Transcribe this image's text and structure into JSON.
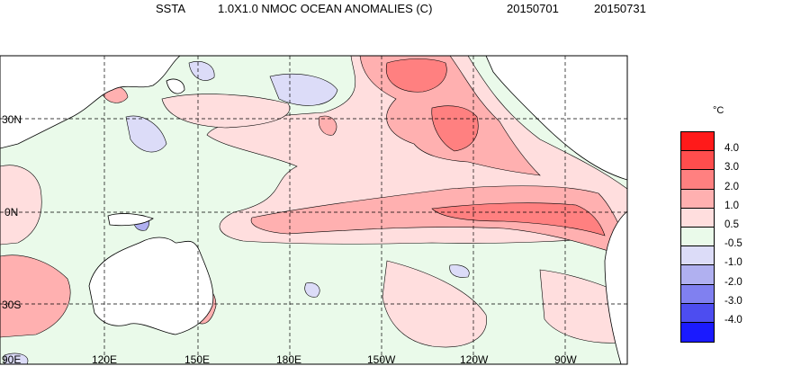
{
  "title": {
    "variable": "SSTA",
    "description": "1.0X1.0 NMOC OCEAN ANOMALIES (C)",
    "start_date": "20150701",
    "end_date": "20150731"
  },
  "map": {
    "region": "Pacific Ocean",
    "lat_labels": [
      "30N",
      "0N",
      "30S"
    ],
    "lon_labels": [
      "90E",
      "120E",
      "150E",
      "180E",
      "150W",
      "120W",
      "90W"
    ],
    "land_color": "#ffffff",
    "grid": "dashed"
  },
  "colorbar": {
    "unit": "°C",
    "labels": [
      "4.0",
      "3.0",
      "2.0",
      "1.0",
      "0.5",
      "-0.5",
      "-1.0",
      "-2.0",
      "-3.0",
      "-4.0"
    ],
    "colors": [
      "#ff1a1a",
      "#ff4d4d",
      "#ff8080",
      "#ffb0b0",
      "#ffdede",
      "#eafaea",
      "#dcdcf8",
      "#b0b0f0",
      "#8080f0",
      "#4d4df0",
      "#1a1aff"
    ]
  }
}
